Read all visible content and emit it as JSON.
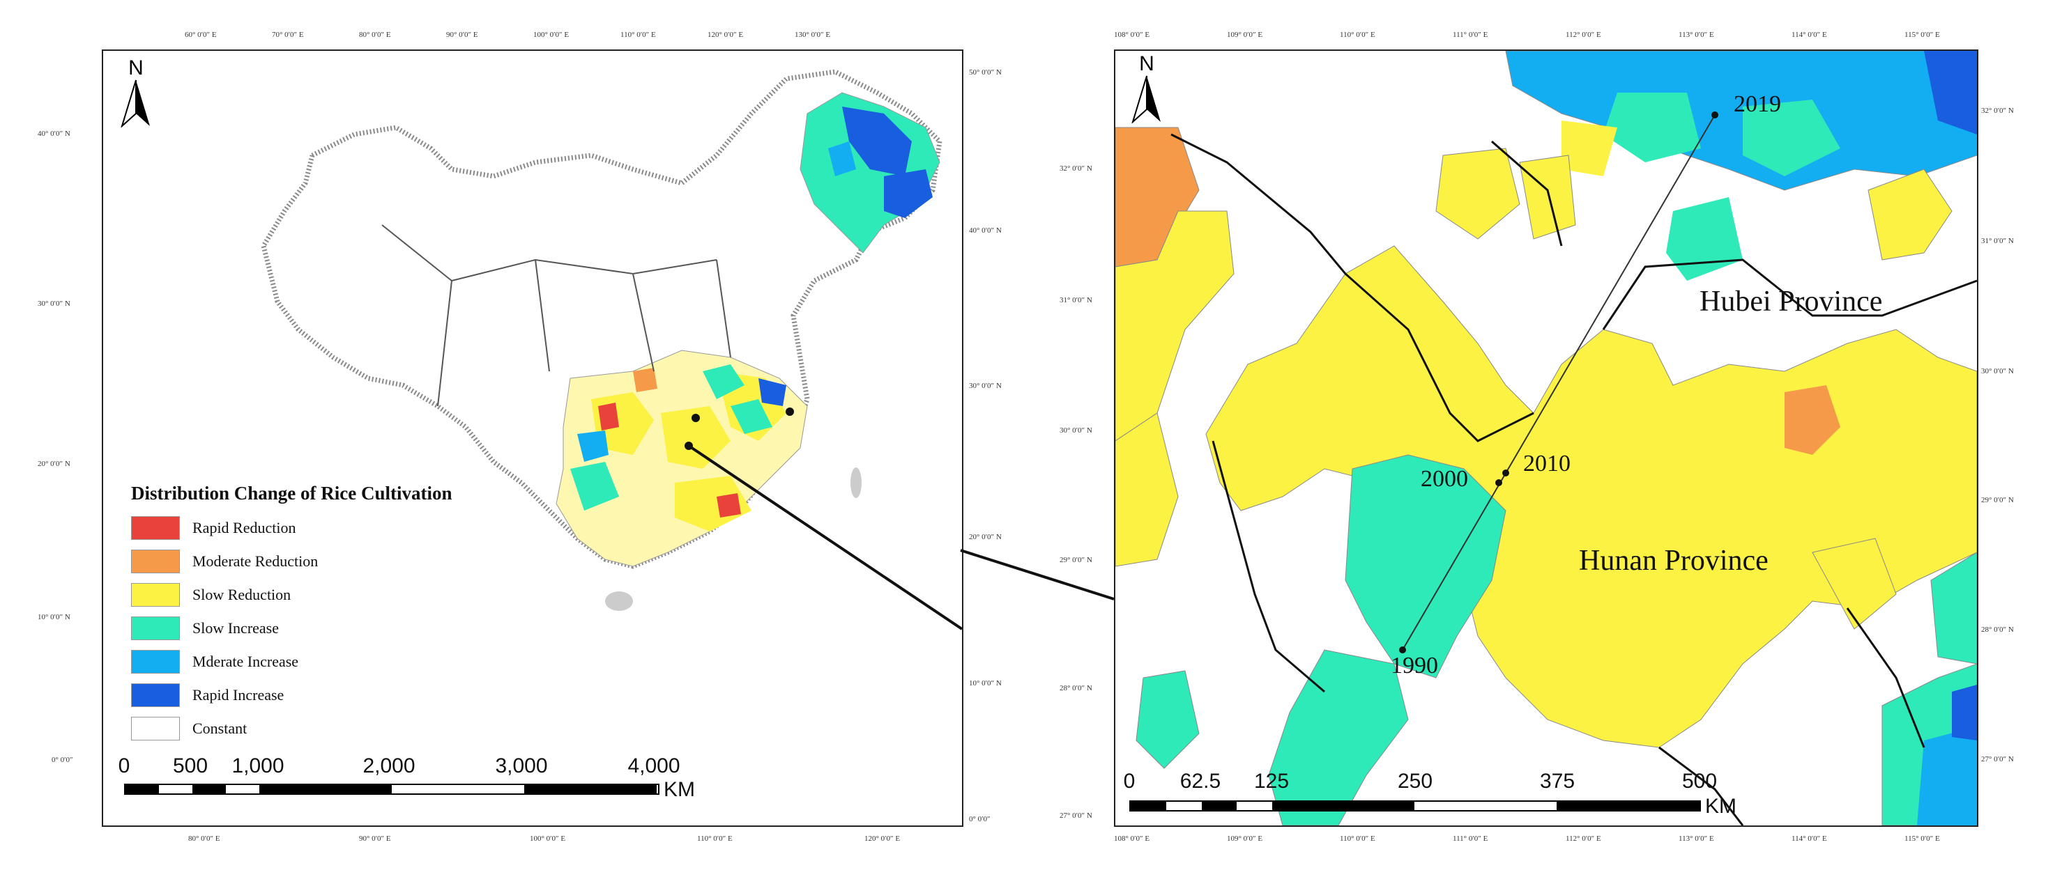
{
  "legend": {
    "title": "Distribution Change of Rice Cultivation",
    "items": [
      {
        "label": "Rapid Reduction",
        "color": "#e8423a"
      },
      {
        "label": "Moderate Reduction",
        "color": "#f59a48"
      },
      {
        "label": "Slow Reduction",
        "color": "#fbf244"
      },
      {
        "label": "Slow Increase",
        "color": "#2ee9b8"
      },
      {
        "label": "Mderate Increase",
        "color": "#13adf2"
      },
      {
        "label": "Rapid Increase",
        "color": "#1a5ee0"
      },
      {
        "label": "Constant",
        "color": "#ffffff"
      }
    ]
  },
  "left_map": {
    "north": "N",
    "top_ticks": [
      "60° 0′0″ E",
      "70° 0′0″ E",
      "80° 0′0″ E",
      "90° 0′0″ E",
      "100° 0′0″ E",
      "110° 0′0″ E",
      "120° 0′0″ E",
      "130° 0′0″ E"
    ],
    "bottom_ticks": [
      "80° 0′0″ E",
      "90° 0′0″ E",
      "100° 0′0″ E",
      "110° 0′0″ E",
      "120° 0′0″ E"
    ],
    "left_ticks": [
      "40° 0′0″ N",
      "30° 0′0″ N",
      "20° 0′0″ N",
      "10° 0′0″ N",
      "0° 0′0″"
    ],
    "right_ticks": [
      "50° 0′0″ N",
      "40° 0′0″ N",
      "30° 0′0″ N",
      "20° 0′0″ N",
      "10° 0′0″ N",
      "0° 0′0″"
    ],
    "scale": {
      "labels": [
        "0",
        "500",
        "1,000",
        "2,000",
        "3,000",
        "4,000"
      ],
      "unit": "KM"
    }
  },
  "right_map": {
    "north": "N",
    "top_ticks": [
      "108° 0′0″ E",
      "109° 0′0″ E",
      "110° 0′0″ E",
      "111° 0′0″ E",
      "112° 0′0″ E",
      "113° 0′0″ E",
      "114° 0′0″ E",
      "115° 0′0″ E"
    ],
    "bottom_ticks": [
      "108° 0′0″ E",
      "109° 0′0″ E",
      "110° 0′0″ E",
      "111° 0′0″ E",
      "112° 0′0″ E",
      "113° 0′0″ E",
      "114° 0′0″ E",
      "115° 0′0″ E"
    ],
    "left_ticks": [
      "32° 0′0″ N",
      "31° 0′0″ N",
      "30° 0′0″ N",
      "29° 0′0″ N",
      "28° 0′0″ N",
      "27° 0′0″ N"
    ],
    "right_ticks": [
      "32° 0′0″ N",
      "31° 0′0″ N",
      "30° 0′0″ N",
      "29° 0′0″ N",
      "28° 0′0″ N",
      "27° 0′0″ N"
    ],
    "province_labels": [
      "Hubei Province",
      "Hunan Province"
    ],
    "years": [
      "1990",
      "2000",
      "2010",
      "2019"
    ],
    "scale": {
      "labels": [
        "0",
        "62.5",
        "125",
        "250",
        "375",
        "500"
      ],
      "unit": "KM"
    }
  }
}
